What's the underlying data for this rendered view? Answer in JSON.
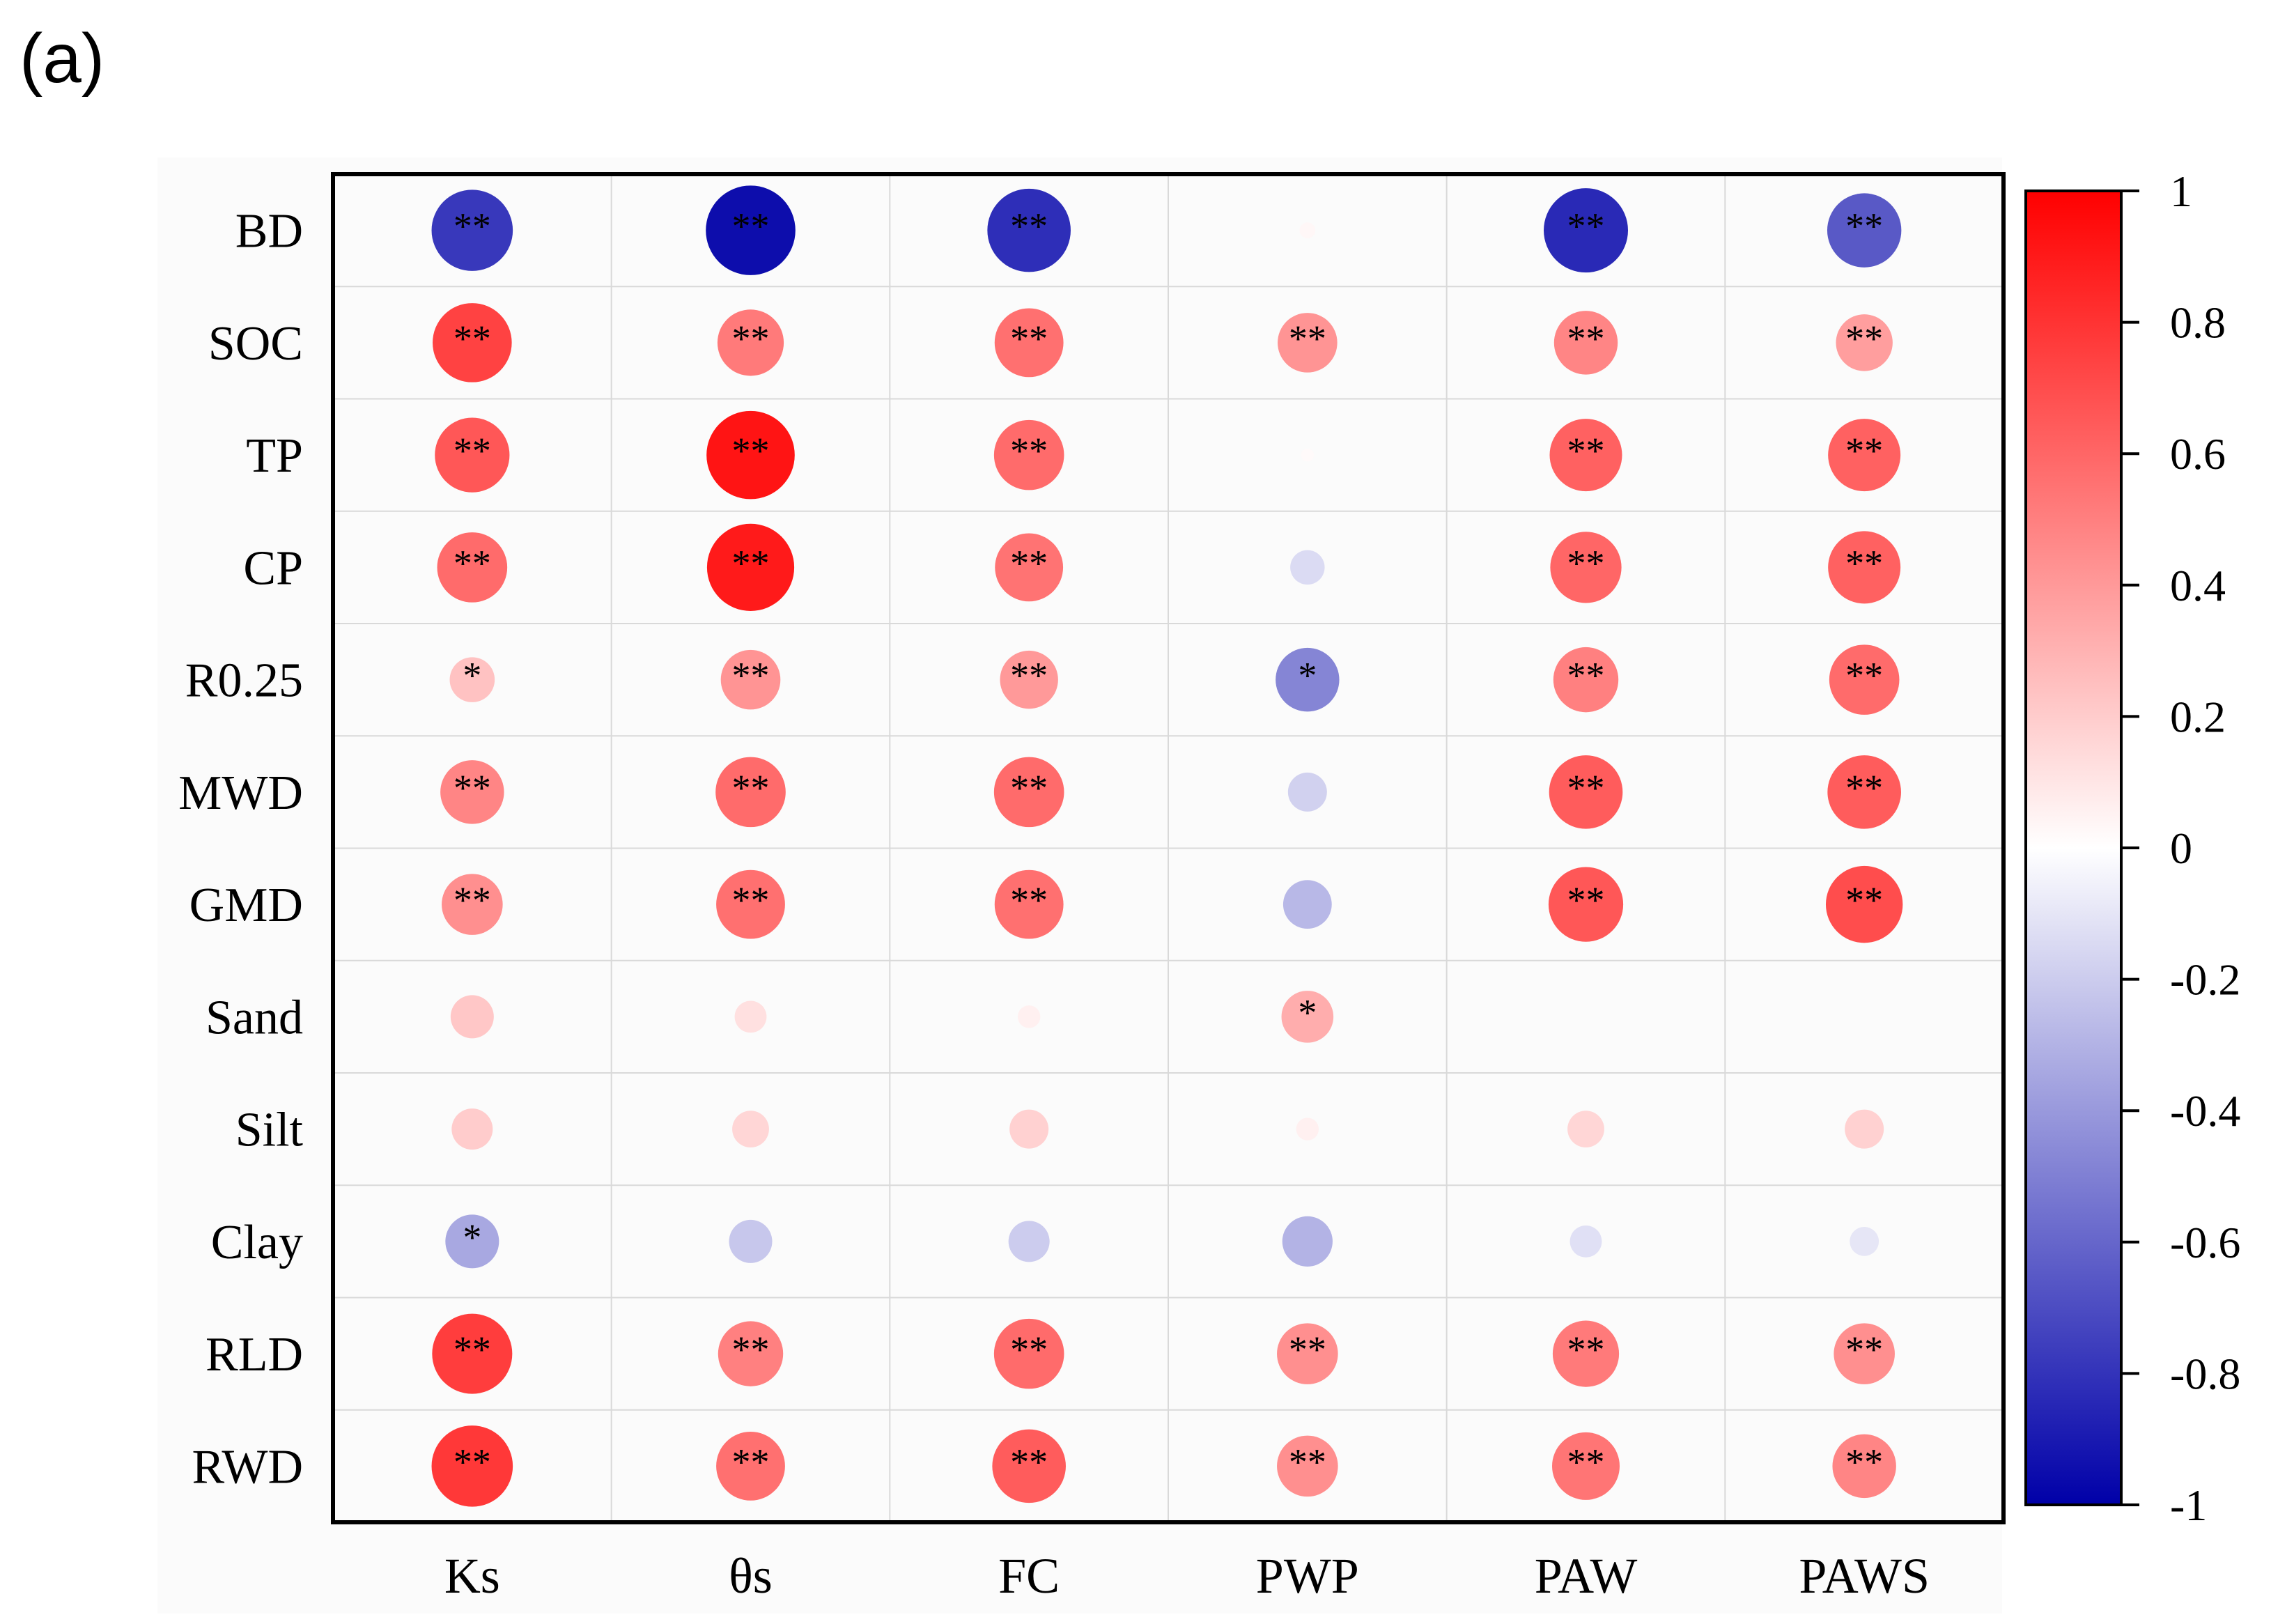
{
  "panel_label": "(a)",
  "chart_data": {
    "type": "heatmap",
    "style": "correlation-circle",
    "rows": [
      "BD",
      "SOC",
      "TP",
      "CP",
      "R0.25",
      "MWD",
      "GMD",
      "Sand",
      "Silt",
      "Clay",
      "RLD",
      "RWD"
    ],
    "columns": [
      "Ks",
      "θs",
      "FC",
      "PWP",
      "PAW",
      "PAWS"
    ],
    "values": [
      [
        -0.78,
        -0.95,
        -0.82,
        0.03,
        -0.84,
        -0.65
      ],
      [
        0.74,
        0.52,
        0.56,
        0.42,
        0.48,
        0.38
      ],
      [
        0.66,
        0.92,
        0.58,
        0.02,
        0.62,
        0.62
      ],
      [
        0.58,
        0.9,
        0.55,
        -0.14,
        0.6,
        0.62
      ],
      [
        0.24,
        0.42,
        0.4,
        -0.48,
        0.5,
        0.58
      ],
      [
        0.48,
        0.58,
        0.58,
        -0.18,
        0.64,
        0.64
      ],
      [
        0.44,
        0.56,
        0.56,
        -0.28,
        0.66,
        0.7
      ],
      [
        0.22,
        0.12,
        0.06,
        0.32,
        0.0,
        0.0
      ],
      [
        0.2,
        0.16,
        0.18,
        0.06,
        0.16,
        0.18
      ],
      [
        -0.34,
        -0.22,
        -0.2,
        -0.3,
        -0.12,
        -0.1
      ],
      [
        0.76,
        0.5,
        0.58,
        0.44,
        0.52,
        0.44
      ],
      [
        0.78,
        0.56,
        0.64,
        0.44,
        0.54,
        0.48
      ]
    ],
    "significance": [
      [
        "**",
        "**",
        "**",
        "",
        "**",
        "**"
      ],
      [
        "**",
        "**",
        "**",
        "**",
        "**",
        "**"
      ],
      [
        "**",
        "**",
        "**",
        "",
        "**",
        "**"
      ],
      [
        "**",
        "**",
        "**",
        "",
        "**",
        "**"
      ],
      [
        "*",
        "**",
        "**",
        "*",
        "**",
        "**"
      ],
      [
        "**",
        "**",
        "**",
        "",
        "**",
        "**"
      ],
      [
        "**",
        "**",
        "**",
        "",
        "**",
        "**"
      ],
      [
        "",
        "",
        "",
        "*",
        "",
        ""
      ],
      [
        "",
        "",
        "",
        "",
        "",
        ""
      ],
      [
        "*",
        "",
        "",
        "",
        "",
        ""
      ],
      [
        "**",
        "**",
        "**",
        "**",
        "**",
        "**"
      ],
      [
        "**",
        "**",
        "**",
        "**",
        "**",
        "**"
      ]
    ],
    "colorbar": {
      "range": [
        -1,
        1
      ],
      "ticks": [
        1,
        0.8,
        0.6,
        0.4,
        0.2,
        0,
        -0.2,
        -0.4,
        -0.6,
        -0.8,
        -1
      ],
      "tick_labels": [
        "1",
        "0.8",
        "0.6",
        "0.4",
        "0.2",
        "0",
        "-0.2",
        "-0.4",
        "-0.6",
        "-0.8",
        "-1"
      ],
      "colors": {
        "low": "#0000a8",
        "mid": "#ffffff",
        "high": "#ff0000"
      }
    }
  }
}
